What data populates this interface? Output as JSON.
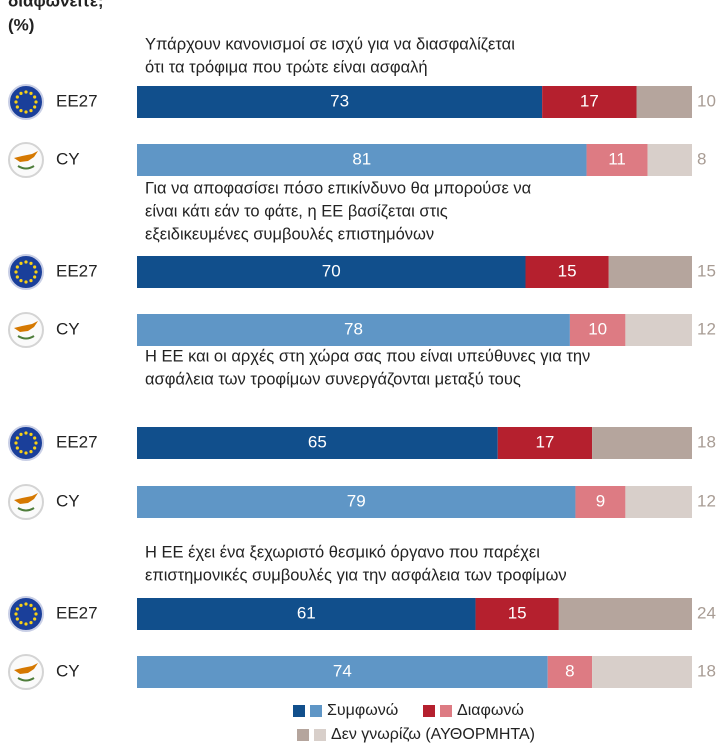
{
  "chart_data": {
    "type": "bar",
    "orientation": "horizontal",
    "stacked": true,
    "title": "διαφωνείτε;",
    "subtitle": "(%)",
    "group_titles": [
      [
        "Υπάρχουν κανονισμοί σε ισχύ για να διασφαλίζεται",
        "ότι τα τρόφιμα που τρώτε είναι ασφαλή"
      ],
      [
        "Για να αποφασίσει πόσο επικίνδυνο θα μπορούσε να",
        "είναι κάτι εάν το φάτε, η ΕΕ βασίζεται στις",
        "εξειδικευμένες συμβουλές επιστημόνων"
      ],
      [
        "Η ΕΕ και οι αρχές στη χώρα σας που είναι υπεύθυνες για την",
        "ασφάλεια των τροφίμων συνεργάζονται μεταξύ τους"
      ],
      [
        "Η ΕΕ έχει ένα ξεχωριστό θεσμικό όργανο που παρέχει",
        "επιστημονικές συμβουλές για την ασφάλεια των τροφίμων"
      ]
    ],
    "categories": [
      "EE27",
      "CY",
      "EE27",
      "CY",
      "EE27",
      "CY",
      "EE27",
      "CY"
    ],
    "xlim": [
      0,
      100
    ],
    "series": [
      {
        "name": "Συμφωνώ",
        "colors": [
          "#114f8c",
          "#5f96c6"
        ],
        "values": [
          73,
          81,
          70,
          78,
          65,
          79,
          61,
          74
        ]
      },
      {
        "name": "Διαφωνώ",
        "colors": [
          "#b5202e",
          "#dd7b83"
        ],
        "values": [
          17,
          11,
          15,
          10,
          17,
          9,
          15,
          8
        ]
      },
      {
        "name": "Δεν γνωρίζω (ΑΥΘΟΡΜΗΤΑ)",
        "colors": [
          "#b5a59d",
          "#d8cfca"
        ],
        "values": [
          10,
          8,
          15,
          12,
          18,
          12,
          24,
          18
        ]
      }
    ]
  }
}
